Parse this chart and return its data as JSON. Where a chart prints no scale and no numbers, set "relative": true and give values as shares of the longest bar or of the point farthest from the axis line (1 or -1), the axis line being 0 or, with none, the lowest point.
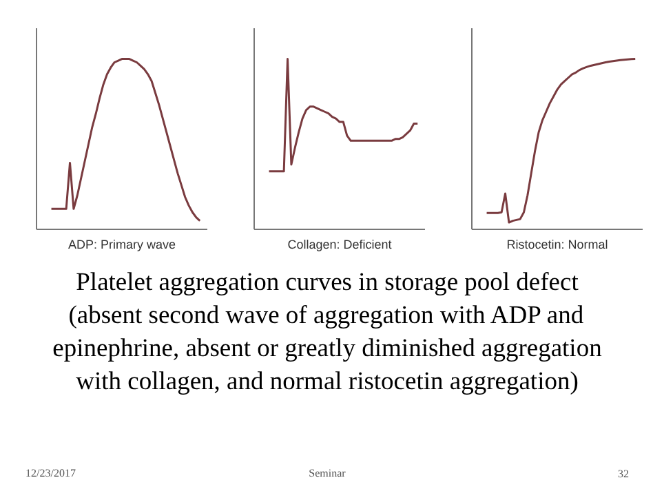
{
  "chart_data": [
    {
      "type": "line",
      "relative": true,
      "xlabel": "ADP: Primary wave",
      "categories": [
        null,
        null,
        null,
        null,
        null,
        null,
        null,
        null,
        null,
        null,
        null,
        null,
        null,
        null,
        null,
        null,
        null,
        null,
        null,
        null,
        null,
        null,
        null,
        null,
        null,
        null,
        null,
        null,
        null,
        null,
        null,
        null,
        null,
        null,
        null,
        null,
        null,
        null,
        null,
        null,
        null
      ],
      "series": [
        {
          "color": "#7a3b3f",
          "values": [
            0.12,
            0.12,
            0.12,
            0.12,
            0.12,
            0.39,
            0.12,
            0.2,
            0.3,
            0.4,
            0.5,
            0.6,
            0.68,
            0.77,
            0.85,
            0.91,
            0.95,
            0.98,
            0.99,
            1.0,
            1.0,
            1.0,
            0.99,
            0.98,
            0.96,
            0.94,
            0.91,
            0.87,
            0.8,
            0.73,
            0.65,
            0.57,
            0.49,
            0.41,
            0.33,
            0.26,
            0.19,
            0.14,
            0.1,
            0.07,
            0.05
          ]
        }
      ]
    },
    {
      "type": "line",
      "relative": true,
      "xlabel": "Collagen: Deficient",
      "categories": [
        null,
        null,
        null,
        null,
        null,
        null,
        null,
        null,
        null,
        null,
        null,
        null,
        null,
        null,
        null,
        null,
        null,
        null,
        null,
        null,
        null,
        null,
        null,
        null,
        null,
        null,
        null,
        null,
        null,
        null,
        null,
        null,
        null,
        null,
        null,
        null,
        null,
        null,
        null,
        null,
        null
      ],
      "series": [
        {
          "color": "#7a3b3f",
          "values": [
            0.34,
            0.34,
            0.34,
            0.34,
            0.34,
            1.0,
            0.38,
            0.48,
            0.57,
            0.65,
            0.7,
            0.72,
            0.72,
            0.71,
            0.7,
            0.69,
            0.68,
            0.66,
            0.65,
            0.63,
            0.63,
            0.55,
            0.52,
            0.52,
            0.52,
            0.52,
            0.52,
            0.52,
            0.52,
            0.52,
            0.52,
            0.52,
            0.52,
            0.52,
            0.53,
            0.53,
            0.54,
            0.56,
            0.58,
            0.62,
            0.62
          ]
        }
      ]
    },
    {
      "type": "line",
      "relative": true,
      "xlabel": "Ristocetin: Normal",
      "categories": [
        null,
        null,
        null,
        null,
        null,
        null,
        null,
        null,
        null,
        null,
        null,
        null,
        null,
        null,
        null,
        null,
        null,
        null,
        null,
        null,
        null,
        null,
        null,
        null,
        null,
        null,
        null,
        null,
        null,
        null,
        null,
        null,
        null,
        null,
        null,
        null,
        null,
        null,
        null,
        null,
        null
      ],
      "series": [
        {
          "color": "#7a3b3f",
          "values": [
            0.096,
            0.096,
            0.096,
            0.096,
            0.1,
            0.21,
            0.04,
            0.05,
            0.055,
            0.06,
            0.1,
            0.2,
            0.33,
            0.46,
            0.57,
            0.64,
            0.69,
            0.74,
            0.78,
            0.82,
            0.85,
            0.87,
            0.89,
            0.91,
            0.92,
            0.935,
            0.945,
            0.953,
            0.96,
            0.965,
            0.97,
            0.975,
            0.98,
            0.984,
            0.987,
            0.99,
            0.993,
            0.995,
            0.997,
            0.999,
            1.0
          ]
        }
      ]
    },
    {
      "type": "other",
      "title": "Platelet aggregation curves in storage pool defect (absent second wave of aggregation with ADP and epinephrine, absent or greatly diminished aggregation with collagen, and normal ristocetin aggregation)",
      "annotations": [
        "12/23/2017",
        "Seminar",
        "32"
      ]
    }
  ]
}
